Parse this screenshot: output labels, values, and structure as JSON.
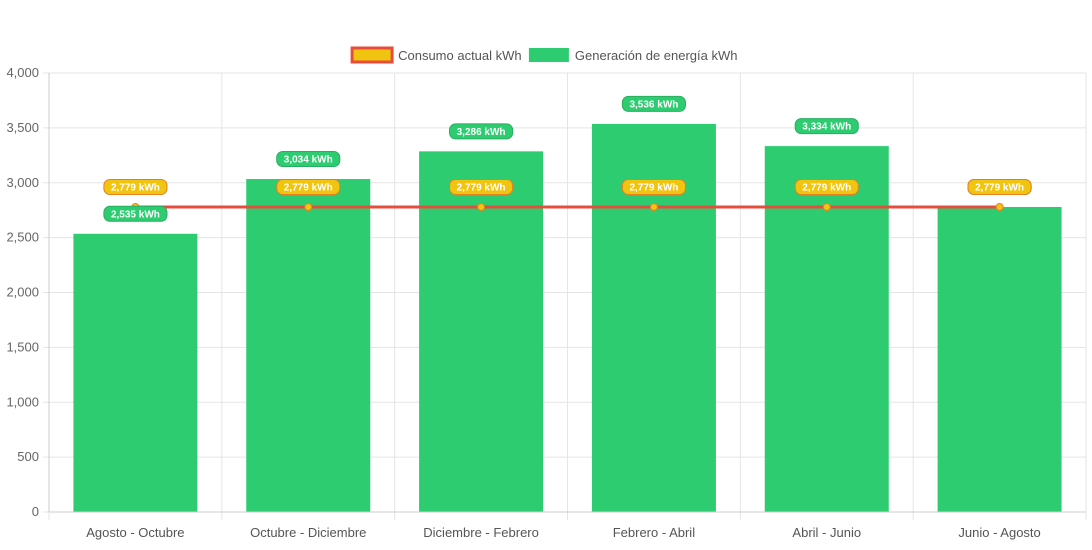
{
  "chart_data": {
    "type": "bar",
    "categories": [
      "Agosto - Octubre",
      "Octubre - Diciembre",
      "Diciembre - Febrero",
      "Febrero - Abril",
      "Abril - Junio",
      "Junio - Agosto"
    ],
    "series": [
      {
        "name": "Consumo actual kWh",
        "type": "line",
        "values": [
          2779,
          2779,
          2779,
          2779,
          2779,
          2779
        ],
        "labels": [
          "2,779 kWh",
          "2,779 kWh",
          "2,779 kWh",
          "2,779 kWh",
          "2,779 kWh",
          "2,779 kWh"
        ],
        "color": "#e74c3c",
        "fill_color": "#f1c40f",
        "label_bg": "#f1c40f",
        "label_border": "#e67e22"
      },
      {
        "name": "Generación de energía kWh",
        "type": "bar",
        "values": [
          2535,
          3034,
          3286,
          3536,
          3334,
          2779
        ],
        "labels": [
          "2,535 kWh",
          "3,034 kWh",
          "3,286 kWh",
          "3,536 kWh",
          "3,334 kWh",
          "2,779 kWh"
        ],
        "color": "#2ecc71",
        "label_bg": "#2ecc71",
        "label_border": "#27ae60"
      }
    ],
    "ylim": [
      0,
      4000
    ],
    "yticks": [
      0,
      500,
      1000,
      1500,
      2000,
      2500,
      3000,
      3500,
      4000
    ],
    "ytick_labels": [
      "0",
      "500",
      "1,000",
      "1,500",
      "2,000",
      "2,500",
      "3,000",
      "3,500",
      "4,000"
    ],
    "grid": true,
    "legend_position": "top",
    "colors": {
      "grid": "#e5e5e5",
      "axis": "#cccccc"
    }
  }
}
